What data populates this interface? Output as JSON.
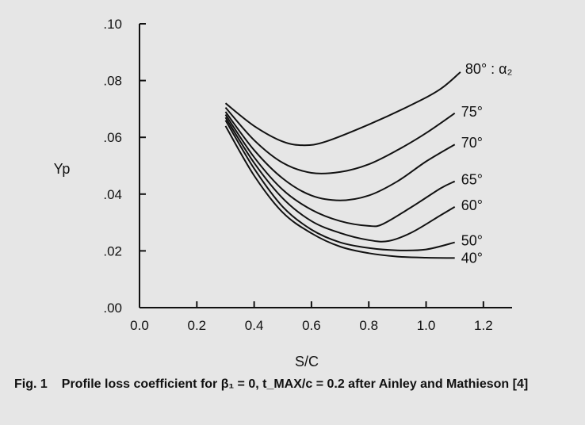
{
  "chart_data": {
    "type": "line",
    "title": "",
    "xlabel": "S/C",
    "ylabel": "Yp",
    "xlim": [
      0.0,
      1.3
    ],
    "ylim": [
      0.0,
      0.1
    ],
    "x_ticks": [
      "0.0",
      "0.2",
      "0.4",
      "0.6",
      "0.8",
      "1.0",
      "1.2"
    ],
    "y_ticks": [
      ".00",
      ".02",
      ".04",
      ".06",
      ".08",
      ".10"
    ],
    "grid": false,
    "legend": "curve labels at right end of each line",
    "series": [
      {
        "name": "80°",
        "points": [
          [
            0.3,
            0.072
          ],
          [
            0.4,
            0.064
          ],
          [
            0.5,
            0.0585
          ],
          [
            0.575,
            0.0572
          ],
          [
            0.65,
            0.0585
          ],
          [
            0.8,
            0.0645
          ],
          [
            0.95,
            0.0715
          ],
          [
            1.05,
            0.077
          ],
          [
            1.12,
            0.083
          ]
        ]
      },
      {
        "name": "75°",
        "points": [
          [
            0.3,
            0.0705
          ],
          [
            0.4,
            0.059
          ],
          [
            0.5,
            0.051
          ],
          [
            0.6,
            0.0475
          ],
          [
            0.7,
            0.0478
          ],
          [
            0.8,
            0.0505
          ],
          [
            0.9,
            0.0555
          ],
          [
            1.0,
            0.0615
          ],
          [
            1.1,
            0.0685
          ]
        ]
      },
      {
        "name": "70°",
        "points": [
          [
            0.3,
            0.069
          ],
          [
            0.4,
            0.0555
          ],
          [
            0.5,
            0.0455
          ],
          [
            0.6,
            0.0395
          ],
          [
            0.7,
            0.0378
          ],
          [
            0.8,
            0.0395
          ],
          [
            0.9,
            0.0445
          ],
          [
            1.0,
            0.0515
          ],
          [
            1.1,
            0.0575
          ]
        ]
      },
      {
        "name": "65°",
        "points": [
          [
            0.3,
            0.068
          ],
          [
            0.4,
            0.053
          ],
          [
            0.5,
            0.0415
          ],
          [
            0.6,
            0.0345
          ],
          [
            0.7,
            0.0305
          ],
          [
            0.8,
            0.0288
          ],
          [
            0.85,
            0.0295
          ],
          [
            0.95,
            0.0355
          ],
          [
            1.05,
            0.042
          ],
          [
            1.1,
            0.0445
          ]
        ]
      },
      {
        "name": "60°",
        "points": [
          [
            0.3,
            0.067
          ],
          [
            0.4,
            0.051
          ],
          [
            0.5,
            0.0385
          ],
          [
            0.6,
            0.0305
          ],
          [
            0.7,
            0.0263
          ],
          [
            0.8,
            0.0238
          ],
          [
            0.87,
            0.0235
          ],
          [
            0.95,
            0.0265
          ],
          [
            1.05,
            0.0325
          ],
          [
            1.1,
            0.0355
          ]
        ]
      },
      {
        "name": "50°",
        "points": [
          [
            0.3,
            0.066
          ],
          [
            0.4,
            0.049
          ],
          [
            0.5,
            0.0355
          ],
          [
            0.6,
            0.0275
          ],
          [
            0.7,
            0.023
          ],
          [
            0.8,
            0.021
          ],
          [
            0.9,
            0.0202
          ],
          [
            1.0,
            0.0205
          ],
          [
            1.1,
            0.023
          ]
        ]
      },
      {
        "name": "40°",
        "points": [
          [
            0.3,
            0.064
          ],
          [
            0.4,
            0.0465
          ],
          [
            0.5,
            0.0335
          ],
          [
            0.6,
            0.0262
          ],
          [
            0.7,
            0.0215
          ],
          [
            0.8,
            0.0192
          ],
          [
            0.9,
            0.018
          ],
          [
            1.0,
            0.0176
          ],
          [
            1.1,
            0.0175
          ]
        ]
      }
    ],
    "annotations": [
      {
        "text": "80°",
        "extra": ": α₂",
        "series": "80°"
      },
      {
        "text": "75°",
        "series": "75°"
      },
      {
        "text": "70°",
        "series": "70°"
      },
      {
        "text": "65°",
        "series": "65°"
      },
      {
        "text": "60°",
        "series": "60°"
      },
      {
        "text": "50°",
        "series": "50°"
      },
      {
        "text": "40°",
        "series": "40°"
      }
    ]
  },
  "caption": {
    "fig_label": "Fig. 1",
    "text": "Profile loss coefficient for β₁ = 0, t_MAX/c = 0.2 after Ainley and Mathieson [4]"
  }
}
